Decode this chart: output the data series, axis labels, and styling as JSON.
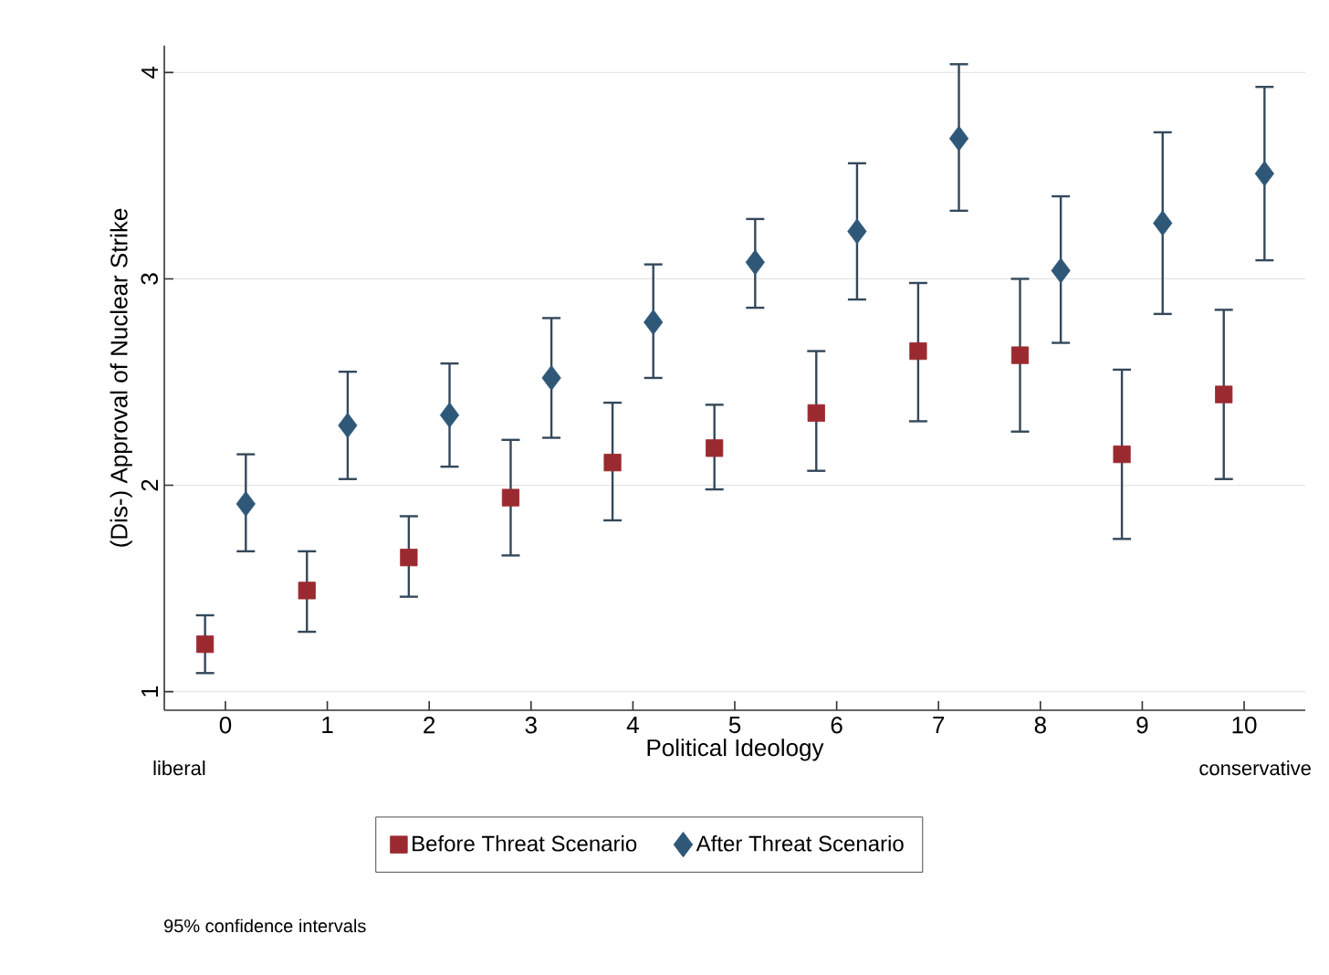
{
  "chart_data": {
    "type": "scatter",
    "xlabel": "Political Ideology",
    "ylabel": "(Dis-) Approval of Nuclear Strike",
    "xlim": [
      -0.6,
      10.6
    ],
    "ylim": [
      0.91,
      4.13
    ],
    "xticks": [
      0,
      1,
      2,
      3,
      4,
      5,
      6,
      7,
      8,
      9,
      10
    ],
    "yticks": [
      1,
      2,
      3,
      4
    ],
    "grid": "y",
    "legend": "bottom",
    "series": [
      {
        "name": "Before Threat Scenario",
        "color": "#9b2a30",
        "marker": "square",
        "x": [
          -0.2,
          0.8,
          1.8,
          2.8,
          3.8,
          4.8,
          5.8,
          6.8,
          7.8,
          8.8,
          9.8
        ],
        "values": [
          1.23,
          1.49,
          1.65,
          1.94,
          2.11,
          2.18,
          2.35,
          2.65,
          2.63,
          2.15,
          2.44
        ],
        "errors": [
          [
            1.09,
            1.37
          ],
          [
            1.29,
            1.68
          ],
          [
            1.46,
            1.85
          ],
          [
            1.66,
            2.22
          ],
          [
            1.83,
            2.4
          ],
          [
            1.98,
            2.39
          ],
          [
            2.07,
            2.65
          ],
          [
            2.31,
            2.98
          ],
          [
            2.26,
            3.0
          ],
          [
            1.74,
            2.56
          ],
          [
            2.03,
            2.85
          ]
        ]
      },
      {
        "name": "After Threat Scenario",
        "color": "#2f5878",
        "marker": "diamond",
        "x": [
          0.2,
          1.2,
          2.2,
          3.2,
          4.2,
          5.2,
          6.2,
          7.2,
          8.2,
          9.2,
          10.2
        ],
        "values": [
          1.91,
          2.29,
          2.34,
          2.52,
          2.79,
          3.08,
          3.23,
          3.68,
          3.04,
          3.27,
          3.51
        ],
        "errors": [
          [
            1.68,
            2.15
          ],
          [
            2.03,
            2.55
          ],
          [
            2.09,
            2.59
          ],
          [
            2.23,
            2.81
          ],
          [
            2.52,
            3.07
          ],
          [
            2.86,
            3.29
          ],
          [
            2.9,
            3.56
          ],
          [
            3.33,
            4.04
          ],
          [
            2.69,
            3.4
          ],
          [
            2.83,
            3.71
          ],
          [
            3.09,
            3.93
          ]
        ]
      }
    ],
    "annotations": [
      "liberal",
      "conservative",
      "95% confidence intervals"
    ]
  }
}
